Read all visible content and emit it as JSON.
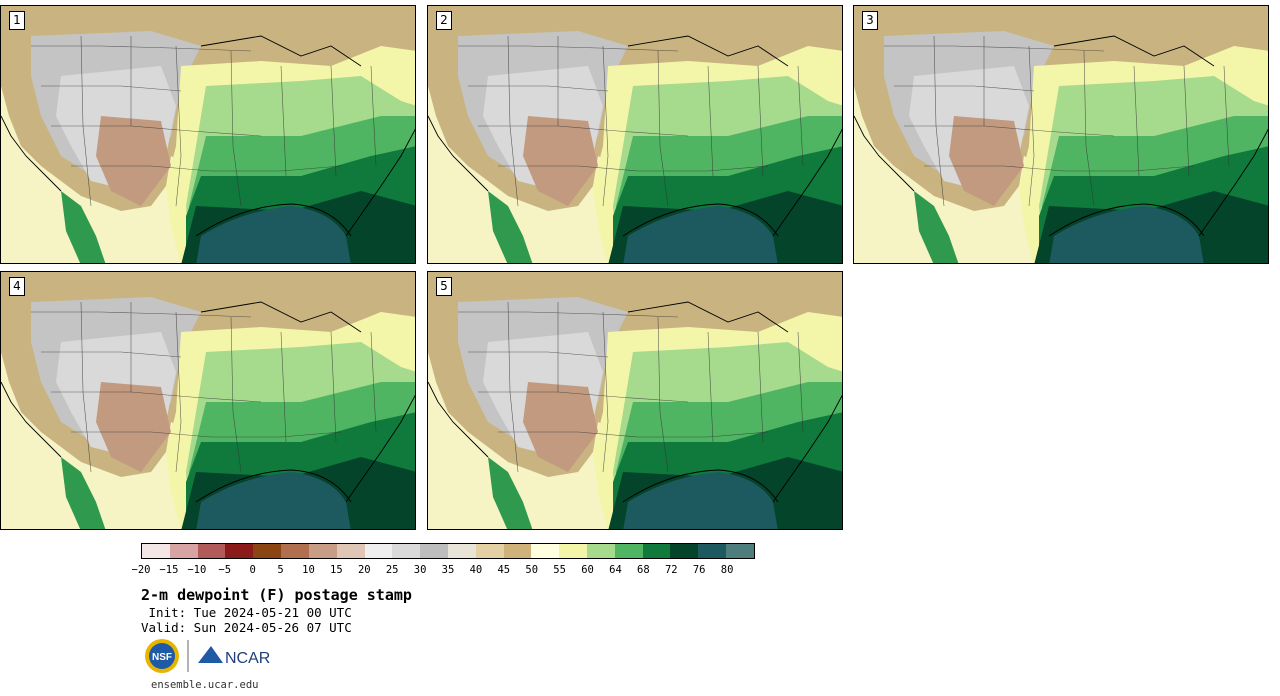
{
  "panels": [
    {
      "label": "1"
    },
    {
      "label": "2"
    },
    {
      "label": "3"
    },
    {
      "label": "4"
    },
    {
      "label": "5"
    }
  ],
  "colorbar": {
    "colors": [
      "#f3e6e6",
      "#d7a3a3",
      "#b05a5a",
      "#8b1a1a",
      "#8b4513",
      "#b07050",
      "#c79d85",
      "#e0c7b5",
      "#efefef",
      "#dadada",
      "#bdbdbd",
      "#e8e4d8",
      "#e3d0a5",
      "#cfb27a",
      "#ffffe0",
      "#f3f6a8",
      "#a6da8c",
      "#4fb563",
      "#0f7a3c",
      "#04442b",
      "#1d5a5f",
      "#4e7d7d"
    ],
    "ticks": [
      "−20",
      "−15",
      "−10",
      "−5",
      "0",
      "5",
      "10",
      "15",
      "20",
      "25",
      "30",
      "35",
      "40",
      "45",
      "50",
      "55",
      "60",
      "64",
      "68",
      "72",
      "76",
      "80"
    ]
  },
  "title": "2-m dewpoint (F) postage stamp",
  "init": " Init: Tue 2024-05-21 00 UTC",
  "valid": "Valid: Sun 2024-05-26 07 UTC",
  "logos": {
    "nsf_text": "NSF",
    "ncar_text": "NCAR"
  },
  "url": "ensemble.ucar.edu"
}
